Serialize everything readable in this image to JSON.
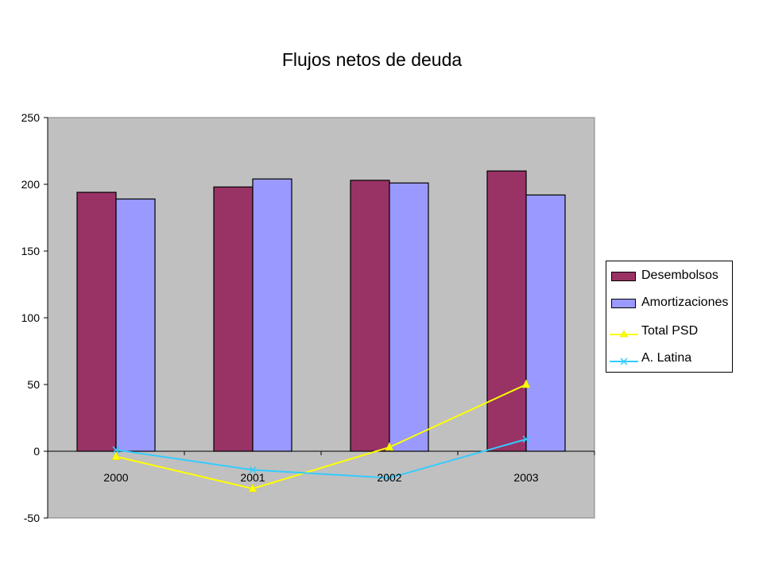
{
  "chart_data": {
    "type": "bar",
    "title": "Flujos netos de deuda",
    "categories": [
      "2000",
      "2001",
      "2002",
      "2003"
    ],
    "series": [
      {
        "name": "Desembolsos",
        "kind": "bar",
        "color": "#993366",
        "values": [
          194,
          198,
          203,
          210
        ]
      },
      {
        "name": "Amortizaciones",
        "kind": "bar",
        "color": "#9999FF",
        "values": [
          189,
          204,
          201,
          192
        ]
      },
      {
        "name": "Total PSD",
        "kind": "line",
        "marker": "triangle",
        "color": "#FFFF00",
        "values": [
          -4,
          -28,
          3,
          50
        ]
      },
      {
        "name": "A. Latina",
        "kind": "line",
        "marker": "x",
        "color": "#33CCFF",
        "values": [
          1,
          -14,
          -20,
          9
        ]
      }
    ],
    "ylim": [
      -50,
      250
    ],
    "yticks": [
      "250",
      "200",
      "150",
      "100",
      "50",
      "0",
      "-50"
    ],
    "ytick_values": [
      250,
      200,
      150,
      100,
      50,
      0,
      -50
    ],
    "plot_background": "#C0C0C0",
    "grid": false,
    "legend_position": "right"
  }
}
